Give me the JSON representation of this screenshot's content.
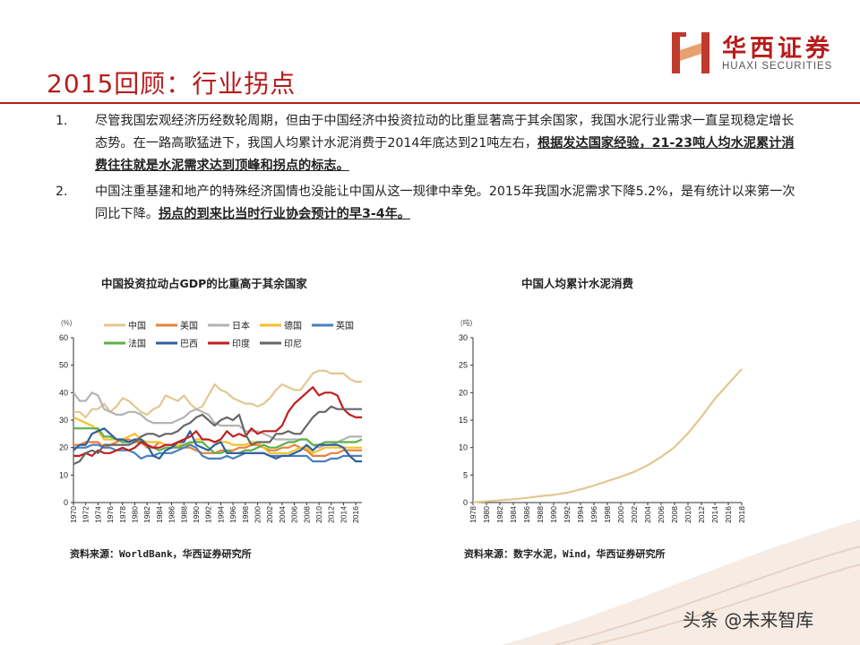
{
  "header": {
    "logo_cn": "华西证券",
    "logo_en": "HUAXI SECURITIES",
    "title": "2015回顾：行业拐点"
  },
  "bullets": [
    {
      "num": "1.",
      "text": "尽管我国宏观经济历经数轮周期，但由于中国经济中投资拉动的比重显著高于其余国家，我国水泥行业需求一直呈现稳定增长态势。在一路高歌猛进下，我国人均累计水泥消费于2014年底达到21吨左右，",
      "bold": "根据发达国家经验，21-23吨人均水泥累计消费往往就是水泥需求达到顶峰和拐点的标志。"
    },
    {
      "num": "2.",
      "text": "中国注重基建和地产的特殊经济国情也没能让中国从这一规律中幸免。2015年我国水泥需求下降5.2%，是有统计以来第一次同比下降。",
      "bold": "拐点的到来比当时行业协会预计的早3-4年。"
    }
  ],
  "footer": {
    "watermark": "头条 @未来智库"
  },
  "chart_data": [
    {
      "type": "line",
      "title": "中国投资拉动占GDP的比重高于其余国家",
      "unit_label": "(%)",
      "source": "资料来源：WorldBank，华西证券研究所",
      "ylim": [
        0,
        60
      ],
      "yticks": [
        0,
        10,
        20,
        30,
        40,
        50,
        60
      ],
      "x": [
        1970,
        1971,
        1972,
        1973,
        1974,
        1975,
        1976,
        1977,
        1978,
        1979,
        1980,
        1981,
        1982,
        1983,
        1984,
        1985,
        1986,
        1987,
        1988,
        1989,
        1990,
        1991,
        1992,
        1993,
        1994,
        1995,
        1996,
        1997,
        1998,
        1999,
        2000,
        2001,
        2002,
        2003,
        2004,
        2005,
        2006,
        2007,
        2008,
        2009,
        2010,
        2011,
        2012,
        2013,
        2014,
        2015,
        2016,
        2017
      ],
      "xticks": [
        "1970",
        "1972",
        "1974",
        "1976",
        "1978",
        "1980",
        "1982",
        "1984",
        "1986",
        "1988",
        "1990",
        "1992",
        "1994",
        "1996",
        "1998",
        "2000",
        "2002",
        "2004",
        "2006",
        "2008",
        "2010",
        "2012",
        "2014",
        "2016"
      ],
      "legend_position": "top",
      "grid": false,
      "series": [
        {
          "name": "中国",
          "color": "#e2c792",
          "values": [
            33,
            33,
            31,
            34,
            34,
            36,
            33,
            35,
            38,
            37,
            35,
            33,
            32,
            34,
            35,
            39,
            38,
            37,
            39,
            36,
            34,
            35,
            39,
            43,
            41,
            40,
            38,
            37,
            36,
            36,
            35,
            36,
            38,
            41,
            43,
            42,
            41,
            41,
            44,
            47,
            48,
            48,
            47,
            47,
            47,
            45,
            44,
            44
          ]
        },
        {
          "name": "美国",
          "color": "#e8803a",
          "values": [
            21,
            21,
            22,
            22,
            22,
            20,
            21,
            22,
            23,
            23,
            22,
            22,
            20,
            20,
            22,
            21,
            21,
            20,
            20,
            20,
            19,
            18,
            18,
            18,
            19,
            19,
            19,
            20,
            20,
            21,
            21,
            20,
            19,
            19,
            20,
            20,
            21,
            20,
            19,
            17,
            17,
            17,
            18,
            18,
            19,
            19,
            19,
            19
          ]
        },
        {
          "name": "日本",
          "color": "#b3b3b3",
          "values": [
            40,
            37,
            37,
            40,
            39,
            34,
            33,
            32,
            32,
            33,
            33,
            32,
            30,
            29,
            29,
            29,
            29,
            30,
            31,
            33,
            34,
            33,
            32,
            29,
            28,
            28,
            28,
            28,
            26,
            26,
            26,
            25,
            24,
            23,
            23,
            23,
            23,
            23,
            23,
            21,
            20,
            21,
            21,
            22,
            23,
            24,
            24,
            24
          ]
        },
        {
          "name": "德国",
          "color": "#f2c12e",
          "values": [
            31,
            30,
            29,
            28,
            26,
            23,
            23,
            23,
            23,
            24,
            25,
            23,
            22,
            22,
            22,
            21,
            21,
            21,
            21,
            21,
            23,
            23,
            23,
            22,
            22,
            22,
            21,
            21,
            21,
            22,
            22,
            20,
            18,
            18,
            18,
            18,
            19,
            20,
            20,
            18,
            19,
            20,
            20,
            20,
            20,
            20,
            20,
            20
          ]
        },
        {
          "name": "英国",
          "color": "#4a7fc0",
          "values": [
            20,
            20,
            20,
            21,
            21,
            20,
            20,
            19,
            19,
            19,
            18,
            16,
            17,
            17,
            18,
            18,
            18,
            19,
            20,
            21,
            20,
            17,
            16,
            16,
            16,
            17,
            16,
            17,
            18,
            18,
            18,
            18,
            17,
            17,
            17,
            17,
            17,
            17,
            17,
            15,
            15,
            15,
            16,
            16,
            17,
            17,
            17,
            17
          ]
        },
        {
          "name": "法国",
          "color": "#5cb04a",
          "values": [
            27,
            27,
            27,
            27,
            27,
            24,
            24,
            23,
            22,
            22,
            23,
            22,
            21,
            20,
            19,
            20,
            20,
            20,
            21,
            22,
            22,
            22,
            20,
            18,
            18,
            19,
            18,
            18,
            19,
            19,
            20,
            21,
            20,
            20,
            21,
            22,
            22,
            23,
            23,
            21,
            21,
            22,
            22,
            22,
            22,
            22,
            22,
            23
          ]
        },
        {
          "name": "巴西",
          "color": "#2f5f9e",
          "values": [
            19,
            21,
            21,
            25,
            26,
            27,
            25,
            23,
            23,
            22,
            23,
            23,
            21,
            17,
            16,
            19,
            20,
            22,
            22,
            26,
            21,
            20,
            19,
            21,
            22,
            18,
            18,
            18,
            18,
            18,
            18,
            18,
            17,
            16,
            17,
            17,
            18,
            19,
            21,
            19,
            21,
            21,
            21,
            21,
            20,
            17,
            15,
            15
          ]
        },
        {
          "name": "印度",
          "color": "#c01f1f",
          "values": [
            17,
            17,
            18,
            17,
            19,
            18,
            18,
            19,
            20,
            19,
            20,
            22,
            21,
            20,
            20,
            21,
            21,
            22,
            23,
            24,
            26,
            23,
            23,
            22,
            23,
            26,
            24,
            25,
            24,
            27,
            25,
            26,
            26,
            26,
            28,
            33,
            36,
            38,
            40,
            42,
            39,
            40,
            40,
            39,
            34,
            32,
            31,
            31
          ]
        },
        {
          "name": "印尼",
          "color": "#666666",
          "values": [
            14,
            15,
            18,
            19,
            18,
            21,
            21,
            21,
            21,
            21,
            22,
            24,
            25,
            25,
            24,
            25,
            25,
            26,
            28,
            29,
            31,
            32,
            30,
            28,
            30,
            31,
            30,
            32,
            25,
            21,
            22,
            22,
            22,
            25,
            25,
            26,
            25,
            25,
            28,
            31,
            33,
            33,
            35,
            34,
            34,
            34,
            34,
            34
          ]
        }
      ]
    },
    {
      "type": "line",
      "title": "中国人均累计水泥消费",
      "unit_label": "(吨)",
      "source": "资料来源：数字水泥，Wind，华西证券研究所",
      "ylim": [
        0,
        30
      ],
      "yticks": [
        0,
        5,
        10,
        15,
        20,
        25,
        30
      ],
      "x": [
        1978,
        1980,
        1982,
        1984,
        1986,
        1988,
        1990,
        1992,
        1994,
        1996,
        1998,
        2000,
        2002,
        2004,
        2006,
        2008,
        2010,
        2012,
        2014,
        2016,
        2018
      ],
      "xticks": [
        "1978",
        "1980",
        "1982",
        "1984",
        "1986",
        "1988",
        "1990",
        "1992",
        "1994",
        "1996",
        "1998",
        "2000",
        "2002",
        "2004",
        "2006",
        "2008",
        "2010",
        "2012",
        "2014",
        "2016",
        "2018"
      ],
      "grid": false,
      "series": [
        {
          "name": "",
          "color": "#e2c792",
          "values": [
            0.07,
            0.23,
            0.4,
            0.6,
            0.85,
            1.15,
            1.4,
            1.8,
            2.4,
            3.1,
            3.9,
            4.7,
            5.6,
            6.8,
            8.3,
            10.1,
            12.6,
            15.6,
            18.9,
            21.6,
            24.3
          ]
        }
      ]
    }
  ]
}
